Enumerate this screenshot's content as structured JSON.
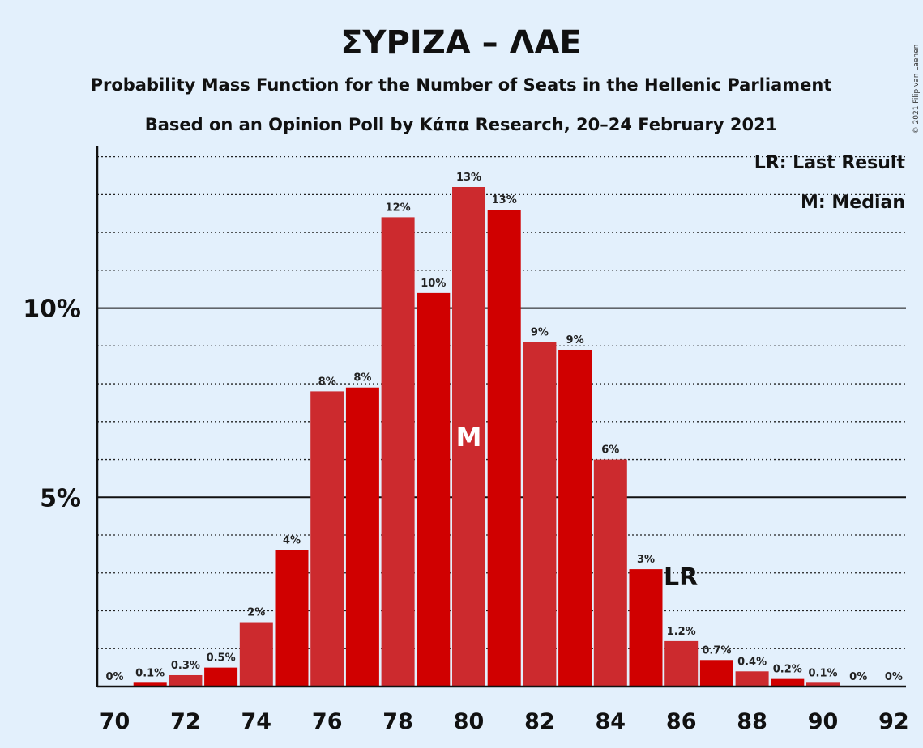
{
  "title": "ΣΥΡΙΖΑ – ΛΑΕ",
  "subtitle_1": "Probability Mass Function for the Number of Seats in the Hellenic Parliament",
  "subtitle_2": "Based on an Opinion Poll by Κάπα Research, 20–24 February 2021",
  "legend": {
    "lr": "LR: Last Result",
    "m": "M: Median"
  },
  "copyright": "© 2021 Filip van Laenen",
  "colors": {
    "background": "#e3f0fc",
    "bar_a": "#cc2a2e",
    "bar_b": "#d00000",
    "axis": "#111111"
  },
  "chart_data": {
    "type": "bar",
    "x": [
      70,
      71,
      72,
      73,
      74,
      75,
      76,
      77,
      78,
      79,
      80,
      81,
      82,
      83,
      84,
      85,
      86,
      87,
      88,
      89,
      90,
      91,
      92
    ],
    "values": [
      0,
      0.1,
      0.3,
      0.5,
      1.7,
      3.6,
      7.8,
      7.9,
      12.4,
      10.4,
      13.2,
      12.6,
      9.1,
      8.9,
      6.0,
      3.1,
      1.2,
      0.7,
      0.4,
      0.2,
      0.1,
      0,
      0
    ],
    "labels": [
      "0%",
      "0.1%",
      "0.3%",
      "0.5%",
      "2%",
      "4%",
      "8%",
      "8%",
      "12%",
      "10%",
      "13%",
      "13%",
      "9%",
      "9%",
      "6%",
      "3%",
      "1.2%",
      "0.7%",
      "0.4%",
      "0.2%",
      "0.1%",
      "0%",
      "0%"
    ],
    "xticks": [
      "70",
      "72",
      "74",
      "76",
      "78",
      "80",
      "82",
      "84",
      "86",
      "88",
      "90",
      "92"
    ],
    "yticks": [
      {
        "value": 5,
        "label": "5%"
      },
      {
        "value": 10,
        "label": "10%"
      }
    ],
    "ylim": [
      0,
      14
    ],
    "minor_grid_step": 1,
    "median": 80,
    "median_marker": "M",
    "last_result": 85,
    "last_result_marker": "LR"
  }
}
